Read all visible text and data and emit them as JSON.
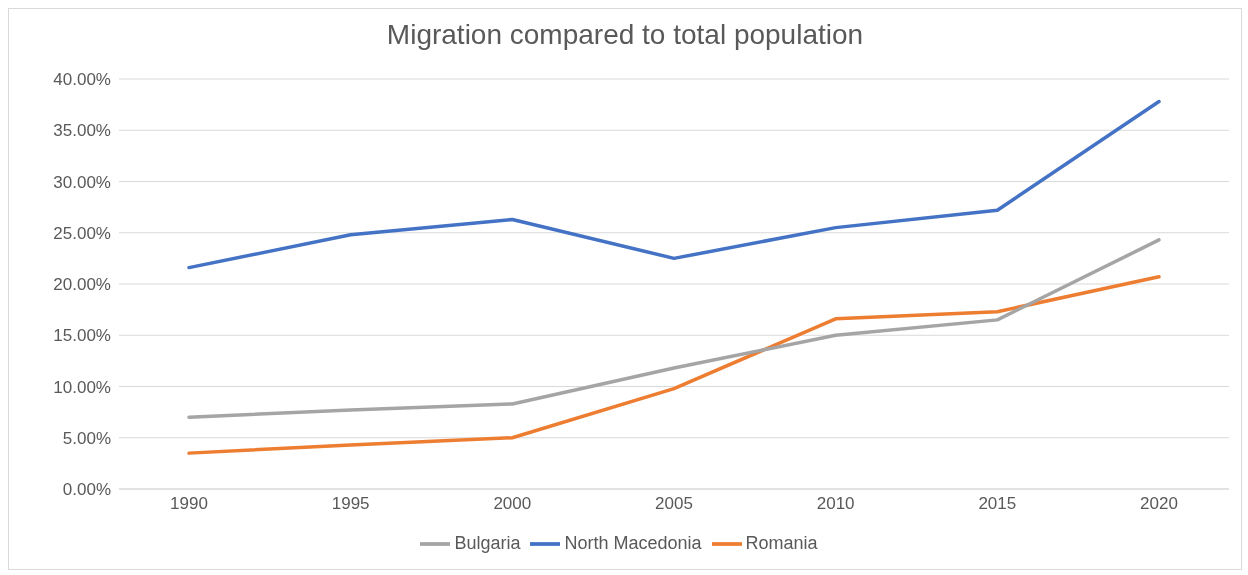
{
  "chart_data": {
    "type": "line",
    "title": "Migration compared to total population",
    "categories": [
      "1990",
      "1995",
      "2000",
      "2005",
      "2010",
      "2015",
      "2020"
    ],
    "series": [
      {
        "name": "North Macedonia",
        "color": "#4472c4",
        "values": [
          21.6,
          24.8,
          26.3,
          22.5,
          25.5,
          27.2,
          37.8
        ]
      },
      {
        "name": "Romania",
        "color": "#ed7d31",
        "values": [
          3.5,
          4.3,
          5.0,
          9.8,
          16.6,
          17.3,
          20.7
        ]
      },
      {
        "name": "Bulgaria",
        "color": "#a5a5a5",
        "values": [
          7.0,
          7.7,
          8.3,
          11.8,
          15.0,
          16.5,
          24.3
        ]
      }
    ],
    "ylim": [
      0,
      40
    ],
    "yticks": [
      {
        "value": 0,
        "label": "0.00%"
      },
      {
        "value": 5,
        "label": "5.00%"
      },
      {
        "value": 10,
        "label": "10.00%"
      },
      {
        "value": 15,
        "label": "15.00%"
      },
      {
        "value": 20,
        "label": "20.00%"
      },
      {
        "value": 25,
        "label": "25.00%"
      },
      {
        "value": 30,
        "label": "30.00%"
      },
      {
        "value": 35,
        "label": "35.00%"
      },
      {
        "value": 40,
        "label": "40.00%"
      }
    ],
    "grid": "y",
    "legend": "bottom"
  }
}
